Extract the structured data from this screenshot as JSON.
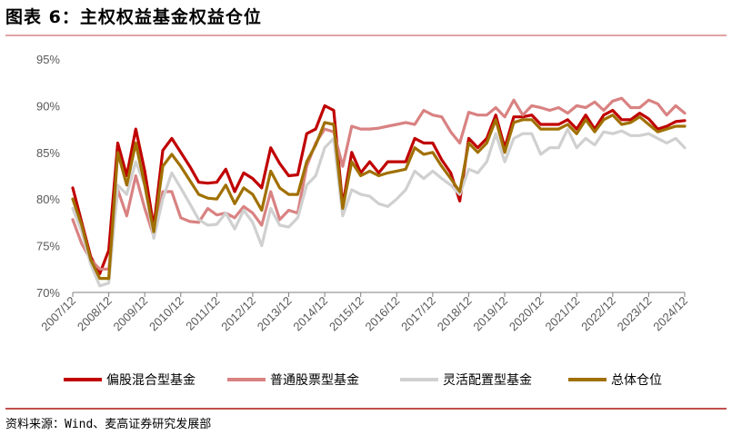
{
  "title": "图表 6：主权权益基金权益仓位",
  "source": "资料来源：Wind、麦高证券研究发展部",
  "chart_data": {
    "type": "line",
    "ylim": [
      70,
      95
    ],
    "yticks": [
      "70%",
      "75%",
      "80%",
      "85%",
      "90%",
      "95%"
    ],
    "ytick_values": [
      70,
      75,
      80,
      85,
      90,
      95
    ],
    "x_start": 2007.75,
    "x_end": 2024.75,
    "xtick_labels": [
      "2007/12",
      "2008/12",
      "2009/12",
      "2010/12",
      "2011/12",
      "2012/12",
      "2013/12",
      "2014/12",
      "2015/12",
      "2016/12",
      "2017/12",
      "2018/12",
      "2019/12",
      "2020/12",
      "2021/12",
      "2022/12",
      "2023/12",
      "2024/12"
    ],
    "xtick_values": [
      2007.75,
      2008.75,
      2009.75,
      2010.75,
      2011.75,
      2012.75,
      2013.75,
      2014.75,
      2015.75,
      2016.75,
      2017.75,
      2018.75,
      2019.75,
      2020.75,
      2021.75,
      2022.75,
      2023.75,
      2024.75
    ],
    "grid": false,
    "legend_position": "bottom",
    "series": [
      {
        "name": "偏股混合型基金",
        "color": "#c00000",
        "x": [
          2007.75,
          2008.0,
          2008.25,
          2008.5,
          2008.75,
          2009.0,
          2009.25,
          2009.5,
          2009.75,
          2010.0,
          2010.25,
          2010.5,
          2010.75,
          2011.0,
          2011.25,
          2011.5,
          2011.75,
          2012.0,
          2012.25,
          2012.5,
          2012.75,
          2013.0,
          2013.25,
          2013.5,
          2013.75,
          2014.0,
          2014.25,
          2014.5,
          2014.75,
          2015.0,
          2015.25,
          2015.5,
          2015.75,
          2016.0,
          2016.25,
          2016.5,
          2016.75,
          2017.0,
          2017.25,
          2017.5,
          2017.75,
          2018.0,
          2018.25,
          2018.5,
          2018.75,
          2019.0,
          2019.25,
          2019.5,
          2019.75,
          2020.0,
          2020.25,
          2020.5,
          2020.75,
          2021.0,
          2021.25,
          2021.5,
          2021.75,
          2022.0,
          2022.25,
          2022.5,
          2022.75,
          2023.0,
          2023.25,
          2023.5,
          2023.75,
          2024.0,
          2024.25,
          2024.5,
          2024.75
        ],
        "y": [
          81.2,
          77.5,
          73.8,
          72.0,
          74.5,
          86.0,
          82.5,
          87.5,
          83.0,
          77.0,
          85.2,
          86.5,
          85.0,
          83.5,
          81.8,
          81.7,
          81.8,
          83.2,
          80.8,
          82.8,
          82.2,
          81.2,
          85.5,
          83.8,
          82.5,
          82.6,
          87.0,
          87.5,
          90.0,
          89.5,
          79.3,
          85.0,
          82.8,
          84.0,
          82.8,
          84.0,
          84.0,
          84.0,
          86.5,
          86.0,
          86.0,
          84.2,
          82.8,
          79.8,
          86.5,
          85.5,
          86.5,
          89.0,
          85.5,
          88.8,
          88.8,
          89.0,
          88.0,
          88.0,
          88.0,
          88.5,
          87.5,
          89.0,
          87.5,
          89.0,
          89.5,
          88.5,
          88.5,
          89.2,
          88.6,
          87.5,
          87.8,
          88.3,
          88.4
        ]
      },
      {
        "name": "普通股票型基金",
        "color": "#d98282",
        "x": [
          2007.75,
          2008.0,
          2008.25,
          2008.5,
          2008.75,
          2009.0,
          2009.25,
          2009.5,
          2009.75,
          2010.0,
          2010.25,
          2010.5,
          2010.75,
          2011.0,
          2011.25,
          2011.5,
          2011.75,
          2012.0,
          2012.25,
          2012.5,
          2012.75,
          2013.0,
          2013.25,
          2013.5,
          2013.75,
          2014.0,
          2014.25,
          2014.5,
          2014.75,
          2015.0,
          2015.25,
          2015.5,
          2015.75,
          2016.0,
          2016.25,
          2016.5,
          2016.75,
          2017.0,
          2017.25,
          2017.5,
          2017.75,
          2018.0,
          2018.25,
          2018.5,
          2018.75,
          2019.0,
          2019.25,
          2019.5,
          2019.75,
          2020.0,
          2020.25,
          2020.5,
          2020.75,
          2021.0,
          2021.25,
          2021.5,
          2021.75,
          2022.0,
          2022.25,
          2022.5,
          2022.75,
          2023.0,
          2023.25,
          2023.5,
          2023.75,
          2024.0,
          2024.25,
          2024.5,
          2024.75
        ],
        "y": [
          77.8,
          75.2,
          73.5,
          72.5,
          72.5,
          81.0,
          78.2,
          82.5,
          79.0,
          76.0,
          80.8,
          80.8,
          78.0,
          77.6,
          77.5,
          79.0,
          78.3,
          78.5,
          78.0,
          79.2,
          78.5,
          77.2,
          80.8,
          77.8,
          78.8,
          78.5,
          83.5,
          86.0,
          87.5,
          87.2,
          83.5,
          87.8,
          87.5,
          87.5,
          87.6,
          87.8,
          88.0,
          88.2,
          88.0,
          89.5,
          89.0,
          88.8,
          87.2,
          86.0,
          89.3,
          89.0,
          89.0,
          89.8,
          88.8,
          90.6,
          89.0,
          90.0,
          89.8,
          89.5,
          89.8,
          89.2,
          90.0,
          89.8,
          90.4,
          89.5,
          90.5,
          90.8,
          89.8,
          89.8,
          90.6,
          90.2,
          89.0,
          90.0,
          89.2
        ]
      },
      {
        "name": "灵活配置型基金",
        "color": "#d0d0d0",
        "x": [
          2007.75,
          2008.0,
          2008.25,
          2008.5,
          2008.75,
          2009.0,
          2009.25,
          2009.5,
          2009.75,
          2010.0,
          2010.25,
          2010.5,
          2010.75,
          2011.0,
          2011.25,
          2011.5,
          2011.75,
          2012.0,
          2012.25,
          2012.5,
          2012.75,
          2013.0,
          2013.25,
          2013.5,
          2013.75,
          2014.0,
          2014.25,
          2014.5,
          2014.75,
          2015.0,
          2015.25,
          2015.5,
          2015.75,
          2016.0,
          2016.25,
          2016.5,
          2016.75,
          2017.0,
          2017.25,
          2017.5,
          2017.75,
          2018.0,
          2018.25,
          2018.5,
          2018.75,
          2019.0,
          2019.25,
          2019.5,
          2019.75,
          2020.0,
          2020.25,
          2020.5,
          2020.75,
          2021.0,
          2021.25,
          2021.5,
          2021.75,
          2022.0,
          2022.25,
          2022.5,
          2022.75,
          2023.0,
          2023.25,
          2023.5,
          2023.75,
          2024.0,
          2024.25,
          2024.5,
          2024.75
        ],
        "y": [
          79.0,
          76.5,
          73.0,
          70.7,
          71.0,
          81.5,
          80.5,
          84.0,
          81.5,
          75.8,
          80.0,
          82.8,
          81.2,
          79.5,
          77.8,
          77.2,
          77.3,
          78.5,
          76.8,
          78.8,
          77.5,
          75.0,
          79.0,
          77.2,
          77.0,
          78.0,
          81.5,
          82.5,
          85.5,
          86.5,
          78.2,
          81.0,
          80.5,
          80.3,
          79.5,
          79.2,
          80.0,
          81.0,
          83.0,
          82.2,
          83.0,
          82.2,
          81.5,
          80.5,
          83.2,
          82.8,
          84.0,
          87.0,
          84.0,
          86.5,
          87.0,
          87.0,
          84.8,
          85.5,
          85.5,
          87.5,
          85.5,
          86.5,
          85.8,
          87.2,
          87.0,
          87.3,
          86.8,
          86.8,
          87.0,
          86.5,
          86.0,
          86.5,
          85.5
        ]
      },
      {
        "name": "总体仓位",
        "color": "#a07000",
        "x": [
          2007.75,
          2008.0,
          2008.25,
          2008.5,
          2008.75,
          2009.0,
          2009.25,
          2009.5,
          2009.75,
          2010.0,
          2010.25,
          2010.5,
          2010.75,
          2011.0,
          2011.25,
          2011.5,
          2011.75,
          2012.0,
          2012.25,
          2012.5,
          2012.75,
          2013.0,
          2013.25,
          2013.5,
          2013.75,
          2014.0,
          2014.25,
          2014.5,
          2014.75,
          2015.0,
          2015.25,
          2015.5,
          2015.75,
          2016.0,
          2016.25,
          2016.5,
          2016.75,
          2017.0,
          2017.25,
          2017.5,
          2017.75,
          2018.0,
          2018.25,
          2018.5,
          2018.75,
          2019.0,
          2019.25,
          2019.5,
          2019.75,
          2020.0,
          2020.25,
          2020.5,
          2020.75,
          2021.0,
          2021.25,
          2021.5,
          2021.75,
          2022.0,
          2022.25,
          2022.5,
          2022.75,
          2023.0,
          2023.25,
          2023.5,
          2023.75,
          2024.0,
          2024.25,
          2024.5,
          2024.75
        ],
        "y": [
          80.0,
          77.2,
          73.5,
          71.5,
          71.5,
          85.0,
          81.5,
          86.0,
          81.5,
          76.5,
          83.5,
          84.8,
          83.5,
          82.0,
          80.5,
          80.1,
          80.0,
          81.5,
          79.5,
          81.2,
          80.5,
          78.8,
          83.0,
          81.2,
          80.5,
          80.5,
          84.0,
          85.8,
          88.2,
          88.0,
          79.0,
          84.0,
          82.5,
          83.0,
          82.5,
          82.8,
          83.0,
          83.2,
          85.5,
          84.8,
          85.0,
          83.5,
          82.2,
          80.8,
          86.0,
          85.0,
          86.0,
          88.5,
          85.0,
          88.2,
          88.5,
          88.5,
          87.5,
          87.5,
          87.5,
          88.0,
          87.0,
          88.5,
          87.2,
          88.5,
          89.0,
          88.0,
          88.2,
          88.8,
          88.0,
          87.2,
          87.5,
          87.8,
          87.8
        ]
      }
    ]
  }
}
